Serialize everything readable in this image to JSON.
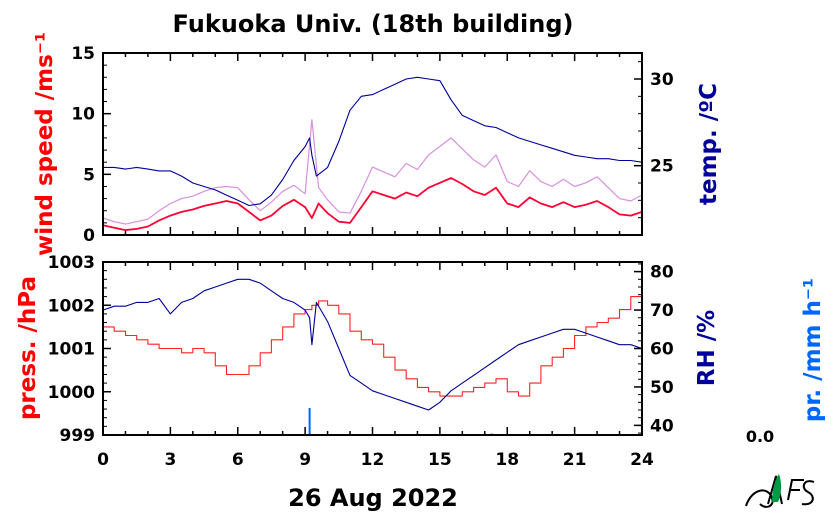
{
  "title": "Fukuoka Univ. (18th building)",
  "x_axis_label": "26 Aug 2022",
  "rain_value": "0.0",
  "colors": {
    "wind": "#ff0033",
    "gust": "#d890e0",
    "temp": "#000099",
    "press": "#ff2222",
    "rh": "#000099",
    "rain": "#0066ff",
    "frame": "#000000"
  },
  "chart_data": [
    {
      "type": "line",
      "panel": "top",
      "xlim": [
        0,
        24
      ],
      "xticks": [
        0,
        3,
        6,
        9,
        12,
        15,
        18,
        21,
        24
      ],
      "left_axis": {
        "label": "wind speed /ms⁻¹",
        "ylim": [
          0,
          15
        ],
        "ticks": [
          0,
          5,
          10,
          15
        ]
      },
      "right_axis": {
        "label": "temp. /ºC",
        "ylim": [
          21,
          31.5
        ],
        "ticks": [
          25,
          30
        ]
      },
      "series": [
        {
          "axis": "left",
          "role": "wind",
          "x": [
            0,
            0.5,
            1,
            1.5,
            2,
            2.5,
            3,
            3.5,
            4,
            4.5,
            5,
            5.5,
            6,
            6.5,
            7,
            7.5,
            8,
            8.5,
            9,
            9.3,
            9.6,
            10,
            10.5,
            11,
            11.5,
            12,
            12.5,
            13,
            13.5,
            14,
            14.5,
            15,
            15.5,
            16,
            16.5,
            17,
            17.5,
            18,
            18.5,
            19,
            19.5,
            20,
            20.5,
            21,
            21.5,
            22,
            22.5,
            23,
            23.5,
            24
          ],
          "y": [
            0.8,
            0.6,
            0.4,
            0.5,
            0.7,
            1.2,
            1.6,
            1.9,
            2.1,
            2.4,
            2.6,
            2.8,
            2.6,
            1.9,
            1.2,
            1.6,
            2.4,
            2.9,
            2.3,
            1.4,
            2.6,
            1.8,
            1.1,
            1.0,
            2.3,
            3.6,
            3.3,
            3.0,
            3.5,
            3.2,
            3.9,
            4.3,
            4.7,
            4.2,
            3.6,
            3.3,
            3.9,
            2.6,
            2.3,
            3.1,
            2.6,
            2.3,
            2.7,
            2.3,
            2.5,
            2.8,
            2.3,
            1.7,
            1.6,
            1.9
          ]
        },
        {
          "axis": "left",
          "role": "gust",
          "x": [
            0,
            0.5,
            1,
            1.5,
            2,
            2.5,
            3,
            3.5,
            4,
            4.5,
            5,
            5.5,
            6,
            6.5,
            7,
            7.5,
            8,
            8.5,
            9,
            9.3,
            9.6,
            10,
            10.5,
            11,
            11.5,
            12,
            12.5,
            13,
            13.5,
            14,
            14.5,
            15,
            15.5,
            16,
            16.5,
            17,
            17.5,
            18,
            18.5,
            19,
            19.5,
            20,
            20.5,
            21,
            21.5,
            22,
            22.5,
            23,
            23.5,
            24
          ],
          "y": [
            1.4,
            1.1,
            0.9,
            1.1,
            1.3,
            2.0,
            2.6,
            3.0,
            3.2,
            3.6,
            3.9,
            4.0,
            3.9,
            2.9,
            2.0,
            2.7,
            3.6,
            4.1,
            3.4,
            9.5,
            3.9,
            2.9,
            1.9,
            1.8,
            3.6,
            5.6,
            5.2,
            4.8,
            5.9,
            5.4,
            6.6,
            7.3,
            8.0,
            7.1,
            6.2,
            5.6,
            6.6,
            4.4,
            4.0,
            5.3,
            4.4,
            4.0,
            4.6,
            4.0,
            4.3,
            4.8,
            3.9,
            3.0,
            2.8,
            3.3
          ]
        },
        {
          "axis": "right",
          "role": "temp",
          "x": [
            0,
            0.5,
            1,
            1.5,
            2,
            2.5,
            3,
            3.5,
            4,
            4.5,
            5,
            5.5,
            6,
            6.5,
            7,
            7.5,
            8,
            8.5,
            9,
            9.2,
            9.3,
            9.5,
            10,
            10.5,
            11,
            11.5,
            12,
            12.5,
            13,
            13.5,
            14,
            14.5,
            15,
            15.5,
            16,
            16.5,
            17,
            17.5,
            18,
            18.5,
            19,
            19.5,
            20,
            20.5,
            21,
            21.5,
            22,
            22.5,
            23,
            23.5,
            24
          ],
          "y": [
            24.9,
            24.9,
            24.8,
            24.9,
            24.8,
            24.7,
            24.7,
            24.4,
            24.0,
            23.8,
            23.6,
            23.3,
            23.0,
            22.7,
            22.8,
            23.3,
            24.2,
            25.3,
            26.1,
            26.6,
            25.6,
            24.4,
            24.9,
            26.4,
            28.2,
            29.0,
            29.1,
            29.4,
            29.7,
            30.0,
            30.1,
            30.0,
            29.9,
            28.8,
            27.9,
            27.6,
            27.3,
            27.2,
            26.9,
            26.6,
            26.4,
            26.2,
            26.0,
            25.8,
            25.6,
            25.5,
            25.4,
            25.4,
            25.3,
            25.3,
            25.2
          ]
        }
      ]
    },
    {
      "type": "line",
      "panel": "bottom",
      "xlim": [
        0,
        24
      ],
      "xticks": [
        0,
        3,
        6,
        9,
        12,
        15,
        18,
        21,
        24
      ],
      "xticklabels": [
        "0",
        "3",
        "6",
        "9",
        "12",
        "15",
        "18",
        "21",
        "24"
      ],
      "left_axis": {
        "label": "press. /hPa",
        "ylim": [
          999,
          1003
        ],
        "ticks": [
          999,
          1000,
          1001,
          1002,
          1003
        ]
      },
      "right_axis": {
        "label": "RH /%",
        "ylim": [
          37.5,
          82.5
        ],
        "ticks": [
          40,
          50,
          60,
          70,
          80
        ]
      },
      "extra_axis": {
        "label": "pr. /mm h⁻¹"
      },
      "series": [
        {
          "axis": "left",
          "role": "press",
          "x": [
            0,
            0.5,
            1,
            1.5,
            2,
            2.5,
            3,
            3.5,
            4,
            4.5,
            5,
            5.5,
            6,
            6.5,
            7,
            7.5,
            8,
            8.5,
            9,
            9.3,
            9.6,
            10,
            10.5,
            11,
            11.5,
            12,
            12.5,
            13,
            13.5,
            14,
            14.5,
            15,
            15.5,
            16,
            16.5,
            17,
            17.5,
            18,
            18.5,
            19,
            19.5,
            20,
            20.5,
            21,
            21.5,
            22,
            22.5,
            23,
            23.5,
            24
          ],
          "y": [
            1001.5,
            1001.4,
            1001.3,
            1001.2,
            1001.1,
            1001.0,
            1001.0,
            1000.9,
            1001.0,
            1000.9,
            1000.6,
            1000.4,
            1000.4,
            1000.6,
            1000.9,
            1001.2,
            1001.5,
            1001.8,
            1001.9,
            1002.0,
            1002.1,
            1002.0,
            1001.8,
            1001.4,
            1001.2,
            1001.1,
            1000.8,
            1000.5,
            1000.3,
            1000.1,
            1000.0,
            999.9,
            999.9,
            1000.0,
            1000.1,
            1000.2,
            1000.3,
            1000.0,
            999.9,
            1000.2,
            1000.6,
            1000.8,
            1001.0,
            1001.3,
            1001.5,
            1001.6,
            1001.7,
            1001.9,
            1002.2,
            1002.6
          ]
        },
        {
          "axis": "right",
          "role": "rh",
          "x": [
            0,
            0.5,
            1,
            1.5,
            2,
            2.5,
            3,
            3.5,
            4,
            4.5,
            5,
            5.5,
            6,
            6.5,
            7,
            7.5,
            8,
            8.5,
            9,
            9.2,
            9.3,
            9.5,
            10,
            10.5,
            11,
            11.5,
            12,
            12.5,
            13,
            13.5,
            14,
            14.5,
            15,
            15.5,
            16,
            16.5,
            17,
            17.5,
            18,
            18.5,
            19,
            19.5,
            20,
            20.5,
            21,
            21.5,
            22,
            22.5,
            23,
            23.5,
            24
          ],
          "y": [
            70,
            71,
            71,
            72,
            72,
            73,
            69,
            72,
            73,
            75,
            76,
            77,
            78,
            78,
            77,
            75,
            73,
            72,
            70,
            68,
            61,
            72,
            67,
            60,
            53,
            51,
            49,
            48,
            47,
            46,
            45,
            44,
            46,
            49,
            51,
            53,
            55,
            57,
            59,
            61,
            62,
            63,
            64,
            65,
            65,
            64,
            63,
            62,
            61,
            61,
            60
          ]
        },
        {
          "axis": "rain",
          "role": "rain",
          "type": "bar",
          "x": [
            9.2,
            17.3
          ],
          "y": [
            0.9,
            0.05
          ]
        }
      ]
    }
  ]
}
